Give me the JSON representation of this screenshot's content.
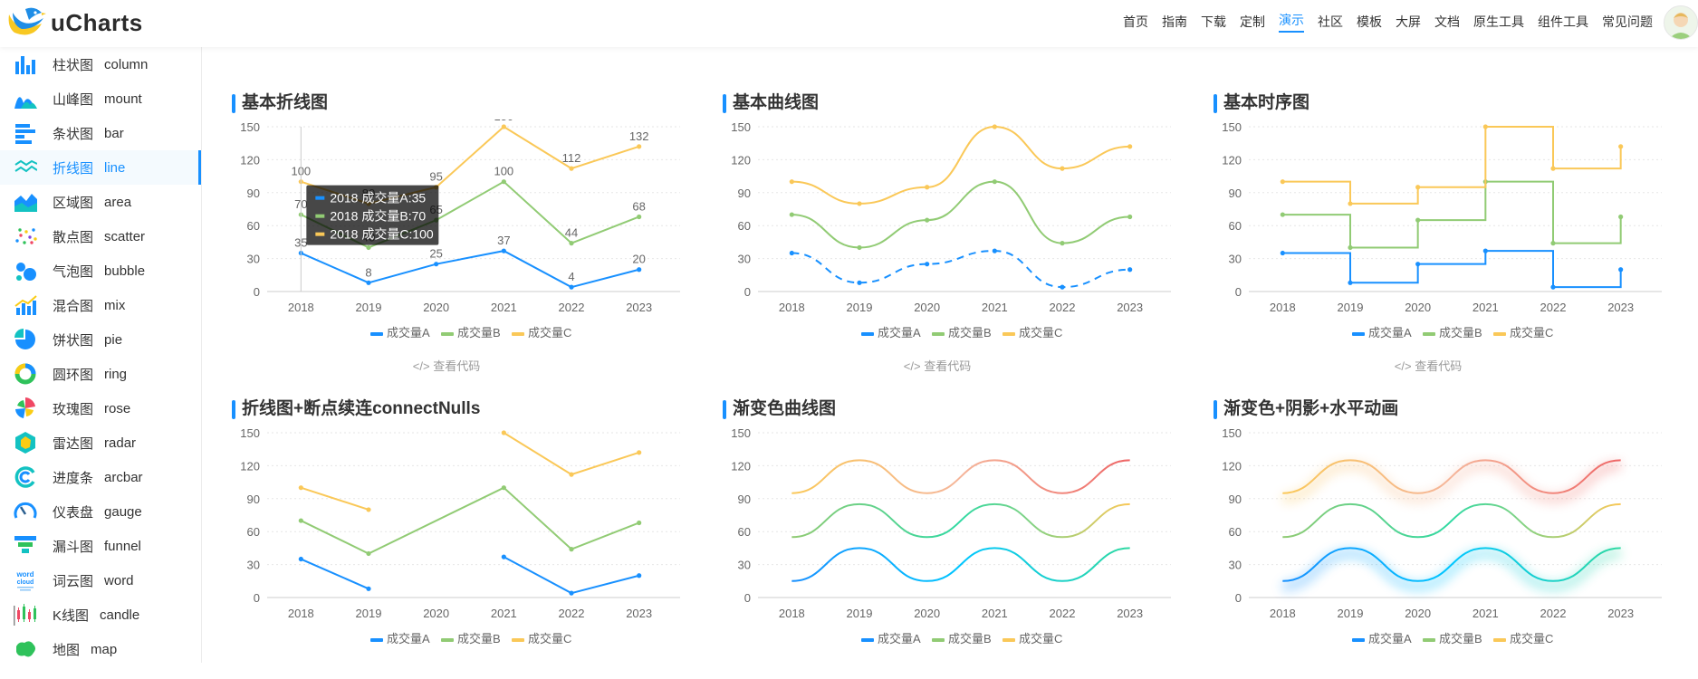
{
  "app": {
    "logo_text": "uCharts"
  },
  "nav": {
    "items": [
      "首页",
      "指南",
      "下载",
      "定制",
      "演示",
      "社区",
      "模板",
      "大屏",
      "文档",
      "原生工具",
      "组件工具",
      "常见问题"
    ],
    "active_index": 4
  },
  "sidebar": {
    "items": [
      {
        "cn": "柱状图",
        "en": "column",
        "icon": "column-chart-icon"
      },
      {
        "cn": "山峰图",
        "en": "mount",
        "icon": "mountain-chart-icon"
      },
      {
        "cn": "条状图",
        "en": "bar",
        "icon": "bar-chart-icon"
      },
      {
        "cn": "折线图",
        "en": "line",
        "icon": "line-chart-icon"
      },
      {
        "cn": "区域图",
        "en": "area",
        "icon": "area-chart-icon"
      },
      {
        "cn": "散点图",
        "en": "scatter",
        "icon": "scatter-chart-icon"
      },
      {
        "cn": "气泡图",
        "en": "bubble",
        "icon": "bubble-chart-icon"
      },
      {
        "cn": "混合图",
        "en": "mix",
        "icon": "mix-chart-icon"
      },
      {
        "cn": "饼状图",
        "en": "pie",
        "icon": "pie-chart-icon"
      },
      {
        "cn": "圆环图",
        "en": "ring",
        "icon": "ring-chart-icon"
      },
      {
        "cn": "玫瑰图",
        "en": "rose",
        "icon": "rose-chart-icon"
      },
      {
        "cn": "雷达图",
        "en": "radar",
        "icon": "radar-chart-icon"
      },
      {
        "cn": "进度条",
        "en": "arcbar",
        "icon": "arcbar-chart-icon"
      },
      {
        "cn": "仪表盘",
        "en": "gauge",
        "icon": "gauge-chart-icon"
      },
      {
        "cn": "漏斗图",
        "en": "funnel",
        "icon": "funnel-chart-icon"
      },
      {
        "cn": "词云图",
        "en": "word",
        "icon": "word-cloud-icon",
        "icon_text": "word cloud"
      },
      {
        "cn": "K线图",
        "en": "candle",
        "icon": "candle-chart-icon"
      },
      {
        "cn": "地图",
        "en": "map",
        "icon": "map-icon"
      }
    ],
    "active_index": 3
  },
  "colors": {
    "accent": "#1890ff",
    "series_a": "#1890FF",
    "series_b": "#91CB74",
    "series_c": "#FAC858",
    "gradient_end": "#EE6666",
    "cyan": "#00C6FF"
  },
  "view_code_label": "</> 查看代码",
  "chart_data": [
    {
      "title": "基本折线图",
      "type": "line",
      "subtype": "straight",
      "categories": [
        "2018",
        "2019",
        "2020",
        "2021",
        "2022",
        "2023"
      ],
      "ylim": [
        0,
        150
      ],
      "yticks": [
        0,
        30,
        60,
        90,
        120,
        150
      ],
      "grid": true,
      "legend": "bottom",
      "series": [
        {
          "name": "成交量A",
          "values": [
            35,
            8,
            25,
            37,
            4,
            20
          ]
        },
        {
          "name": "成交量B",
          "values": [
            70,
            40,
            65,
            100,
            44,
            68
          ]
        },
        {
          "name": "成交量C",
          "values": [
            100,
            80,
            95,
            150,
            112,
            132
          ]
        }
      ],
      "tooltip": {
        "index": 0,
        "lines": [
          "2018 成交量A:35",
          "2018 成交量B:70",
          "2018 成交量C:100"
        ]
      },
      "view_code": true
    },
    {
      "title": "基本曲线图",
      "type": "line",
      "subtype": "curve",
      "categories": [
        "2018",
        "2019",
        "2020",
        "2021",
        "2022",
        "2023"
      ],
      "ylim": [
        0,
        150
      ],
      "yticks": [
        0,
        30,
        60,
        90,
        120,
        150
      ],
      "grid": true,
      "legend": "bottom",
      "series": [
        {
          "name": "成交量A",
          "values": [
            35,
            8,
            25,
            37,
            4,
            20
          ],
          "dashed": true
        },
        {
          "name": "成交量B",
          "values": [
            70,
            40,
            65,
            100,
            44,
            68
          ]
        },
        {
          "name": "成交量C",
          "values": [
            100,
            80,
            95,
            150,
            112,
            132
          ]
        }
      ],
      "view_code": true
    },
    {
      "title": "基本时序图",
      "type": "line",
      "subtype": "step",
      "categories": [
        "2018",
        "2019",
        "2020",
        "2021",
        "2022",
        "2023"
      ],
      "ylim": [
        0,
        150
      ],
      "yticks": [
        0,
        30,
        60,
        90,
        120,
        150
      ],
      "grid": true,
      "legend": "bottom",
      "series": [
        {
          "name": "成交量A",
          "values": [
            35,
            8,
            25,
            37,
            4,
            20
          ]
        },
        {
          "name": "成交量B",
          "values": [
            70,
            40,
            65,
            100,
            44,
            68
          ]
        },
        {
          "name": "成交量C",
          "values": [
            100,
            80,
            95,
            150,
            112,
            132
          ]
        }
      ],
      "view_code": true
    },
    {
      "title": "折线图+断点续连connectNulls",
      "type": "line",
      "subtype": "straight",
      "categories": [
        "2018",
        "2019",
        "2020",
        "2021",
        "2022",
        "2023"
      ],
      "ylim": [
        0,
        150
      ],
      "yticks": [
        0,
        30,
        60,
        90,
        120,
        150
      ],
      "grid": true,
      "legend": "bottom",
      "series": [
        {
          "name": "成交量A",
          "values": [
            35,
            8,
            null,
            37,
            4,
            20
          ]
        },
        {
          "name": "成交量B",
          "values": [
            70,
            40,
            null,
            100,
            44,
            68
          ],
          "connectNulls": true
        },
        {
          "name": "成交量C",
          "values": [
            100,
            80,
            null,
            150,
            112,
            132
          ]
        }
      ],
      "view_code": false
    },
    {
      "title": "渐变色曲线图",
      "type": "line",
      "subtype": "curve",
      "categories": [
        "2018",
        "2019",
        "2020",
        "2021",
        "2022",
        "2023"
      ],
      "ylim": [
        0,
        150
      ],
      "yticks": [
        0,
        30,
        60,
        90,
        120,
        150
      ],
      "grid": true,
      "legend": "bottom",
      "series": [
        {
          "name": "成交量A",
          "values": [
            15,
            45,
            15,
            45,
            15,
            45
          ],
          "gradient": [
            "#1890FF",
            "#00C6FF",
            "#2fd9a2"
          ]
        },
        {
          "name": "成交量B",
          "values": [
            55,
            85,
            55,
            85,
            55,
            85
          ],
          "gradient": [
            "#91CB74",
            "#2fd9a2",
            "#FAC858"
          ]
        },
        {
          "name": "成交量C",
          "values": [
            95,
            125,
            95,
            125,
            95,
            125
          ],
          "gradient": [
            "#FAC858",
            "#F5B59A",
            "#EE6666"
          ]
        }
      ],
      "view_code": false
    },
    {
      "title": "渐变色+阴影+水平动画",
      "type": "line",
      "subtype": "curve",
      "categories": [
        "2018",
        "2019",
        "2020",
        "2021",
        "2022",
        "2023"
      ],
      "ylim": [
        0,
        150
      ],
      "yticks": [
        0,
        30,
        60,
        90,
        120,
        150
      ],
      "grid": true,
      "legend": "bottom",
      "series": [
        {
          "name": "成交量A",
          "values": [
            15,
            45,
            15,
            45,
            15,
            45
          ],
          "gradient": [
            "#1890FF",
            "#00C6FF",
            "#2fd9a2"
          ],
          "shadow": true
        },
        {
          "name": "成交量B",
          "values": [
            55,
            85,
            55,
            85,
            55,
            85
          ],
          "gradient": [
            "#91CB74",
            "#2fd9a2",
            "#FAC858"
          ]
        },
        {
          "name": "成交量C",
          "values": [
            95,
            125,
            95,
            125,
            95,
            125
          ],
          "gradient": [
            "#FAC858",
            "#F5B59A",
            "#EE6666"
          ],
          "shadow": true
        }
      ],
      "view_code": false
    }
  ]
}
